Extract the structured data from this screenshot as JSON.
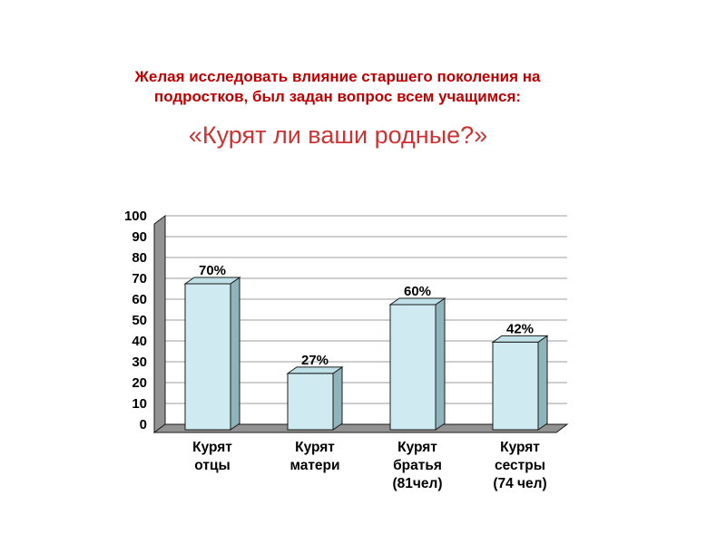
{
  "slide": {
    "title_line": "Желая исследовать влияние старшего поколения на подростков, был задан вопрос всем учащимся:",
    "question": "«Курят ли ваши родные?»",
    "title_color": "#c00000",
    "question_color": "#cd3333"
  },
  "chart_data": {
    "type": "bar",
    "style": "3d",
    "title": "",
    "xlabel": "",
    "ylabel": "",
    "categories": [
      "Курят отцы",
      "Курят матери",
      "Курят братья (81чел)",
      "Курят сестры (74 чел)"
    ],
    "category_lines": [
      [
        "Курят",
        "отцы"
      ],
      [
        "Курят",
        "матери"
      ],
      [
        "Курят",
        "братья",
        "(81чел)"
      ],
      [
        "Курят",
        "сестры",
        "(74 чел)"
      ]
    ],
    "values": [
      70,
      27,
      60,
      42
    ],
    "labels": [
      "70%",
      "27%",
      "60%",
      "42%"
    ],
    "ylim": [
      0,
      100
    ],
    "ytick_step": 10,
    "yticks": [
      0,
      10,
      20,
      30,
      40,
      50,
      60,
      70,
      80,
      90,
      100
    ],
    "grid": true,
    "legend": "none",
    "bar_color": "#cfeaf0",
    "bar_side_color": "#8fb4bc",
    "bar_top_color": "#bfe0e7",
    "wall_color": "#929292",
    "gridline_color": "#9e9e9e",
    "outline_color": "#1a1a1a"
  }
}
